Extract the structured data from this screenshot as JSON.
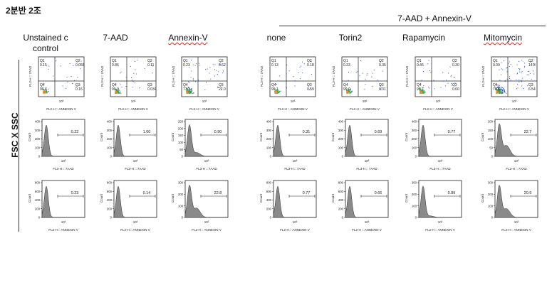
{
  "slide": {
    "title": "2분반 2조",
    "group_title": "7-AAD + Annexin-V",
    "y_axis_label": "FSC X SSC"
  },
  "columns": [
    {
      "label": "Unstained c\ncontrol",
      "misspelled": false
    },
    {
      "label": "7-AAD",
      "misspelled": false
    },
    {
      "label": "Annexin-V",
      "misspelled": true
    },
    {
      "label": "none",
      "misspelled": false
    },
    {
      "label": "Torin2",
      "misspelled": false
    },
    {
      "label": "Rapamycin",
      "misspelled": false
    },
    {
      "label": "Mitomycin",
      "misspelled": true
    }
  ],
  "dot_plot_axes": {
    "x": "FL2-H :: ANNEXIN V",
    "y": "FL3-H :: 7AAD"
  },
  "quadrant_names": [
    "Q1",
    "Q2",
    "Q3",
    "Q4"
  ],
  "dot_plots": [
    {
      "q1": "0.15",
      "q2": "0.055",
      "q3": "0.16",
      "q4": "99.6",
      "density": 0.3
    },
    {
      "q1": "0.86",
      "q2": "0.11",
      "q3": "0.034",
      "q4": "99.0",
      "density": 0.35
    },
    {
      "q1": "0.23",
      "q2": "0.62",
      "q3": "22.0",
      "q4": "77.1",
      "density": 0.7
    },
    {
      "q1": "0.13",
      "q2": "0.18",
      "q3": "0.59",
      "q4": "99.1",
      "density": 0.35
    },
    {
      "q1": "0.33",
      "q2": "0.35",
      "q3": "0.31",
      "q4": "99.0",
      "density": 0.4
    },
    {
      "q1": "0.46",
      "q2": "0.30",
      "q3": "0.60",
      "q4": "98.7",
      "density": 0.45
    },
    {
      "q1": "0.09",
      "q2": "14.3",
      "q3": "6.54",
      "q4": "78.6",
      "density": 1.0
    }
  ],
  "histogram_row_7aad": {
    "x_label": "FL3-H :: 7AAD",
    "y_label": "Count",
    "panels": [
      {
        "gate": "0.22",
        "yticks": [
          "400",
          "300",
          "200",
          "100",
          "0"
        ],
        "shoulder": 0.0
      },
      {
        "gate": "1.00",
        "yticks": [
          "400",
          "300",
          "200",
          "100",
          "0"
        ],
        "shoulder": 0.0
      },
      {
        "gate": "0.90",
        "yticks": [
          "250",
          "200",
          "150",
          "100",
          "50",
          "0"
        ],
        "shoulder": 0.12
      },
      {
        "gate": "0.31",
        "yticks": [
          "400",
          "300",
          "200",
          "100",
          "0"
        ],
        "shoulder": 0.0
      },
      {
        "gate": "0.69",
        "yticks": [
          "400",
          "300",
          "200",
          "100",
          "0"
        ],
        "shoulder": 0.0
      },
      {
        "gate": "0.77",
        "yticks": [
          "400",
          "300",
          "200",
          "100",
          "0"
        ],
        "shoulder": 0.0
      },
      {
        "gate": "22.7",
        "yticks": [
          "200",
          "150",
          "100",
          "50",
          "0"
        ],
        "shoulder": 0.35
      }
    ]
  },
  "histogram_row_annexin": {
    "x_label": "FL2-H :: ANNEXIN V",
    "y_label": "Count",
    "panels": [
      {
        "gate": "0.23",
        "yticks": [
          "800",
          "600",
          "400",
          "200",
          "0"
        ],
        "shoulder": 0.0
      },
      {
        "gate": "0.14",
        "yticks": [
          "800",
          "600",
          "400",
          "200",
          "0"
        ],
        "shoulder": 0.0
      },
      {
        "gate": "22.8",
        "yticks": [
          "300",
          "200",
          "100",
          "0"
        ],
        "shoulder": 0.3
      },
      {
        "gate": "0.77",
        "yticks": [
          "800",
          "600",
          "400",
          "200",
          "0"
        ],
        "shoulder": 0.0
      },
      {
        "gate": "0.66",
        "yticks": [
          "800",
          "600",
          "400",
          "200",
          "0"
        ],
        "shoulder": 0.0
      },
      {
        "gate": "0.89",
        "yticks": [
          "300",
          "200",
          "100",
          "0"
        ],
        "shoulder": 0.05
      },
      {
        "gate": "20.9",
        "yticks": [
          "300",
          "200",
          "100",
          "0"
        ],
        "shoulder": 0.28
      }
    ]
  },
  "colors": {
    "histogram_fill": "#8a8a8a",
    "dot_blue": "#2f4fd8",
    "dot_green": "#2fa84a",
    "dot_orange": "#f08a24",
    "axis": "#222222"
  }
}
